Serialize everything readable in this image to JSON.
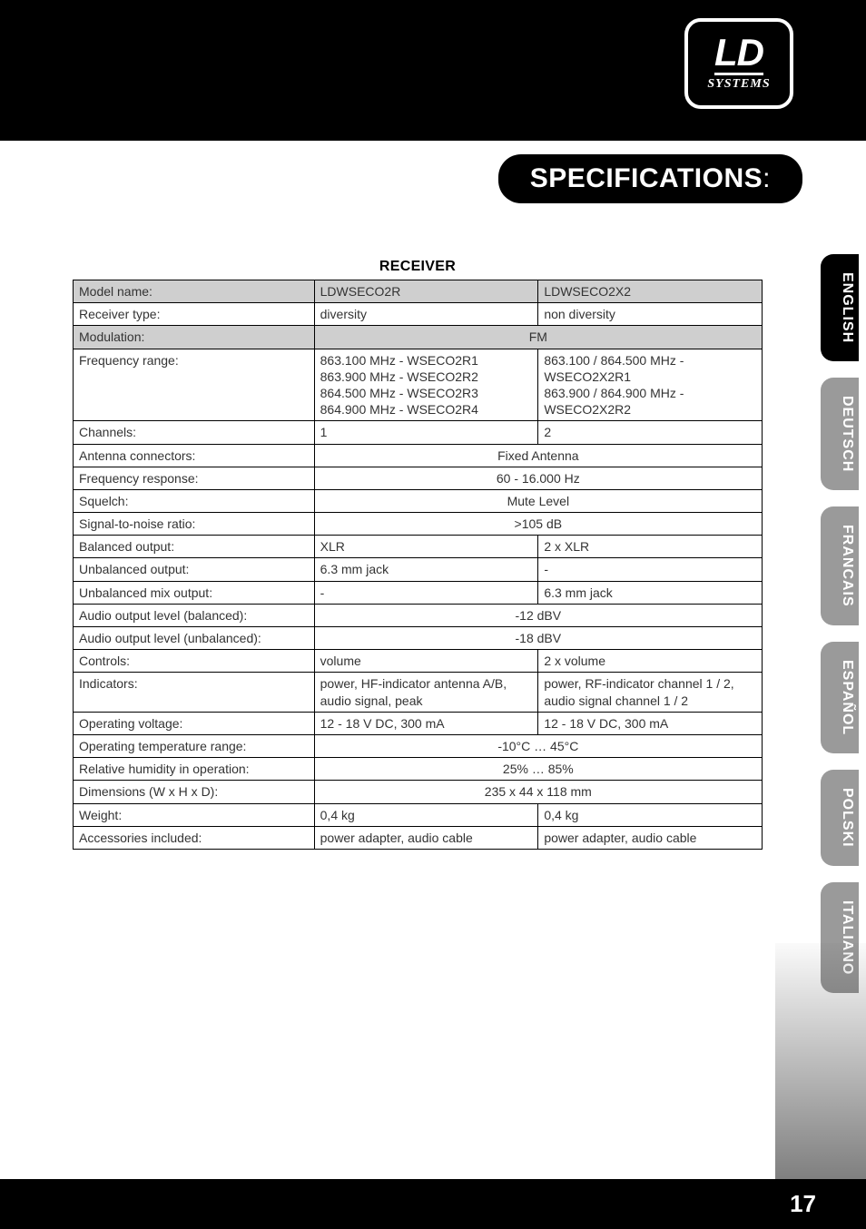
{
  "brand": {
    "ld": "LD",
    "systems": "SYSTEMS"
  },
  "header": {
    "title": "SPECIFICATIONS",
    "colon": ":"
  },
  "tabs": [
    "ENGLISH",
    "DEUTSCH",
    "FRANCAIS",
    "ESPAÑOL",
    "POLSKI",
    "ITALIANO"
  ],
  "footer": {
    "page": "17"
  },
  "section": {
    "title": "RECEIVER"
  },
  "colors": {
    "black": "#000000",
    "white": "#ffffff",
    "shaded": "#cfcfcf",
    "tab_inactive": "#9a9a9a"
  },
  "table": {
    "rows": [
      {
        "shaded": true,
        "label": "Model name:",
        "c1": "LDWSECO2R",
        "c2": "LDWSECO2X2"
      },
      {
        "shaded": false,
        "label": "Receiver type:",
        "c1": "diversity",
        "c2": "non diversity"
      },
      {
        "shaded": true,
        "label": "Modulation:",
        "merged": true,
        "center": true,
        "c": "FM"
      },
      {
        "shaded": false,
        "label": "Frequency range:",
        "c1": "863.100 MHz - WSECO2R1\n863.900 MHz - WSECO2R2\n864.500 MHz - WSECO2R3\n864.900 MHz - WSECO2R4",
        "c2": "863.100 / 864.500 MHz -\nWSECO2X2R1\n863.900 / 864.900 MHz -\nWSECO2X2R2"
      },
      {
        "shaded": false,
        "label": "Channels:",
        "c1": "1",
        "c2": "2"
      },
      {
        "shaded": false,
        "label": "Antenna connectors:",
        "merged": true,
        "center": true,
        "c": "Fixed Antenna"
      },
      {
        "shaded": false,
        "label": "Frequency response:",
        "merged": true,
        "center": true,
        "c": "60 - 16.000 Hz"
      },
      {
        "shaded": false,
        "label": "Squelch:",
        "merged": true,
        "center": true,
        "c": "Mute Level"
      },
      {
        "shaded": false,
        "label": "Signal-to-noise ratio:",
        "merged": true,
        "center": true,
        "c": ">105 dB"
      },
      {
        "shaded": false,
        "label": "Balanced output:",
        "c1": "XLR",
        "c2": "2 x XLR"
      },
      {
        "shaded": false,
        "label": "Unbalanced output:",
        "c1": "6.3 mm jack",
        "c2": "-"
      },
      {
        "shaded": false,
        "label": "Unbalanced mix output:",
        "c1": "-",
        "c2": "6.3 mm jack"
      },
      {
        "shaded": false,
        "label": "Audio output level (balanced):",
        "merged": true,
        "center": true,
        "c": "-12 dBV"
      },
      {
        "shaded": false,
        "label": "Audio output level (unbalanced):",
        "merged": true,
        "center": true,
        "c": "-18 dBV"
      },
      {
        "shaded": false,
        "label": "Controls:",
        "c1": "volume",
        "c2": "2 x volume"
      },
      {
        "shaded": false,
        "label": "Indicators:",
        "c1": "power, HF-indicator antenna A/B,\naudio signal, peak",
        "c2": "power, RF-indicator channel 1 / 2,\naudio signal channel 1 / 2"
      },
      {
        "shaded": false,
        "label": "Operating voltage:",
        "c1": "12 - 18 V DC, 300 mA",
        "c2": "12 - 18 V DC, 300 mA"
      },
      {
        "shaded": false,
        "label": "Operating temperature range:",
        "merged": true,
        "center": true,
        "c": "-10°C … 45°C"
      },
      {
        "shaded": false,
        "label": "Relative humidity in operation:",
        "merged": true,
        "center": true,
        "c": "25% … 85%"
      },
      {
        "shaded": false,
        "label": "Dimensions (W x H x D):",
        "merged": true,
        "center": true,
        "c": "235 x 44 x 118 mm"
      },
      {
        "shaded": false,
        "label": "Weight:",
        "c1": "0,4 kg",
        "c2": "0,4 kg"
      },
      {
        "shaded": false,
        "label": "Accessories included:",
        "c1": "power adapter, audio cable",
        "c2": "power adapter, audio cable"
      }
    ]
  }
}
